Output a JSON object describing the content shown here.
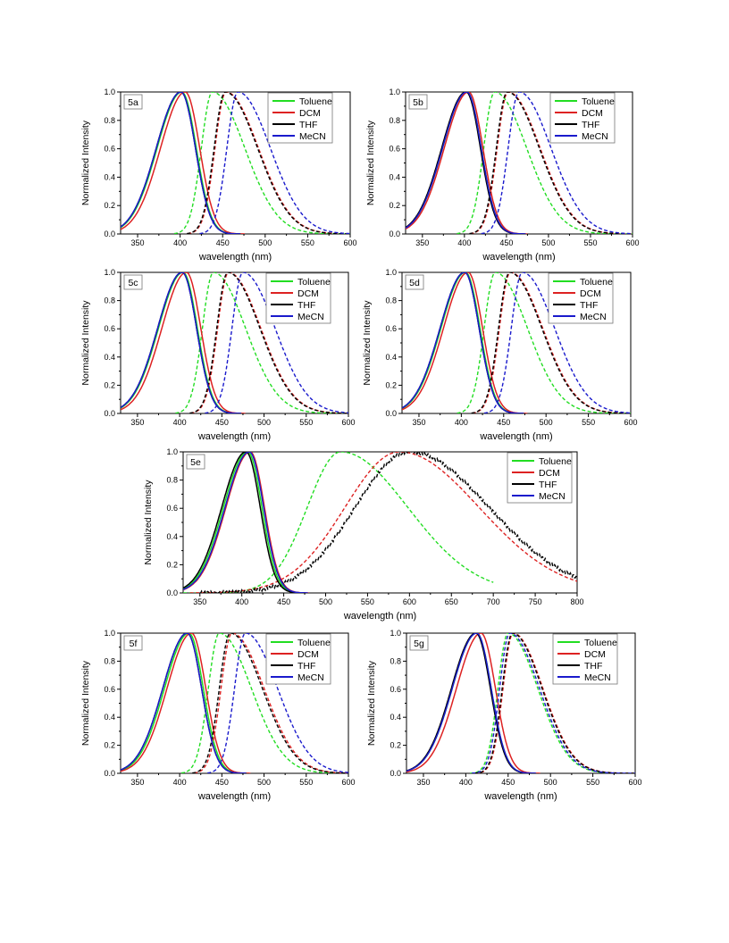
{
  "colors": {
    "Toluene": "#22dd22",
    "DCM": "#dd2222",
    "THF": "#000000",
    "MeCN": "#1a1acc"
  },
  "chart_data": [
    {
      "id": "5a",
      "type": "line",
      "panel_label": "5a",
      "xlabel": "wavelength (nm)",
      "ylabel": "Normalized Intensity",
      "xlim": [
        330,
        600
      ],
      "ylim": [
        0,
        1.0
      ],
      "xticks": [
        "350",
        "400",
        "450",
        "500",
        "550",
        "600"
      ],
      "yticks": [
        "0.0",
        "0.2",
        "0.4",
        "0.6",
        "0.8",
        "1.0"
      ],
      "legend": [
        "Toluene",
        "DCM",
        "THF",
        "MeCN"
      ],
      "absorption_peaks_nm": {
        "Toluene": 402,
        "DCM": 406,
        "THF": 401,
        "MeCN": 401
      },
      "emission_peaks_nm": {
        "Toluene": 438,
        "DCM": 454,
        "THF": 453,
        "MeCN": 468
      },
      "grid": false,
      "legend_position": "top-right"
    },
    {
      "id": "5b",
      "type": "line",
      "panel_label": "5b",
      "xlabel": "wavelength (nm)",
      "ylabel": "Normalized Intensity",
      "xlim": [
        330,
        600
      ],
      "ylim": [
        0,
        1.0
      ],
      "xticks": [
        "350",
        "400",
        "450",
        "500",
        "550",
        "600"
      ],
      "yticks": [
        "0.0",
        "0.2",
        "0.4",
        "0.6",
        "0.8",
        "1.0"
      ],
      "legend": [
        "Toluene",
        "DCM",
        "THF",
        "MeCN"
      ],
      "absorption_peaks_nm": {
        "Toluene": 403,
        "DCM": 405,
        "THF": 402,
        "MeCN": 403
      },
      "emission_peaks_nm": {
        "Toluene": 436,
        "DCM": 452,
        "THF": 451,
        "MeCN": 465
      },
      "grid": false,
      "legend_position": "top-right"
    },
    {
      "id": "5c",
      "type": "line",
      "panel_label": "5c",
      "xlabel": "wavelength (nm)",
      "ylabel": "Normalized Intensity",
      "xlim": [
        330,
        600
      ],
      "ylim": [
        0,
        1.0
      ],
      "xticks": [
        "350",
        "400",
        "450",
        "500",
        "550",
        "600"
      ],
      "yticks": [
        "0.0",
        "0.2",
        "0.4",
        "0.6",
        "0.8",
        "1.0"
      ],
      "legend": [
        "Toluene",
        "DCM",
        "THF",
        "MeCN"
      ],
      "absorption_peaks_nm": {
        "Toluene": 404,
        "DCM": 408,
        "THF": 403,
        "MeCN": 403
      },
      "emission_peaks_nm": {
        "Toluene": 440,
        "DCM": 458,
        "THF": 457,
        "MeCN": 475
      },
      "grid": false,
      "legend_position": "top-right"
    },
    {
      "id": "5d",
      "type": "line",
      "panel_label": "5d",
      "xlabel": "wavelength (nm)",
      "ylabel": "Normalized Intensity",
      "xlim": [
        330,
        600
      ],
      "ylim": [
        0,
        1.0
      ],
      "xticks": [
        "350",
        "400",
        "450",
        "500",
        "550",
        "600"
      ],
      "yticks": [
        "0.0",
        "0.2",
        "0.4",
        "0.6",
        "0.8",
        "1.0"
      ],
      "legend": [
        "Toluene",
        "DCM",
        "THF",
        "MeCN"
      ],
      "absorption_peaks_nm": {
        "Toluene": 405,
        "DCM": 408,
        "THF": 404,
        "MeCN": 404
      },
      "emission_peaks_nm": {
        "Toluene": 440,
        "DCM": 458,
        "THF": 457,
        "MeCN": 472
      },
      "grid": false,
      "legend_position": "top-right"
    },
    {
      "id": "5e",
      "type": "line",
      "panel_label": "5e",
      "xlabel": "wavelength (nm)",
      "ylabel": "Normalized Intensity",
      "xlim": [
        330,
        800
      ],
      "ylim": [
        0,
        1.0
      ],
      "xticks": [
        "350",
        "400",
        "450",
        "500",
        "550",
        "600",
        "650",
        "700",
        "750",
        "800"
      ],
      "yticks": [
        "0.0",
        "0.2",
        "0.4",
        "0.6",
        "0.8",
        "1.0"
      ],
      "legend": [
        "Toluene",
        "DCM",
        "THF",
        "MeCN"
      ],
      "absorption_peaks_nm": {
        "Toluene": 407,
        "DCM": 410,
        "THF": 405,
        "MeCN": 409
      },
      "emission_peaks_nm": {
        "Toluene": 518,
        "DCM": 588,
        "THF": 600
      },
      "grid": false,
      "legend_position": "top-right"
    },
    {
      "id": "5f",
      "type": "line",
      "panel_label": "5f",
      "xlabel": "wavelength (nm)",
      "ylabel": "Normalized Intensity",
      "xlim": [
        330,
        600
      ],
      "ylim": [
        0,
        1.0
      ],
      "xticks": [
        "350",
        "400",
        "450",
        "500",
        "550",
        "600"
      ],
      "yticks": [
        "0.0",
        "0.2",
        "0.4",
        "0.6",
        "0.8",
        "1.0"
      ],
      "legend": [
        "Toluene",
        "DCM",
        "THF",
        "MeCN"
      ],
      "absorption_peaks_nm": {
        "Toluene": 411,
        "DCM": 414,
        "THF": 409,
        "MeCN": 409
      },
      "emission_peaks_nm": {
        "Toluene": 447,
        "DCM": 462,
        "THF": 460,
        "MeCN": 478
      },
      "grid": false,
      "legend_position": "top-right"
    },
    {
      "id": "5g",
      "type": "line",
      "panel_label": "5g",
      "xlabel": "wavelength (nm)",
      "ylabel": "Normalized Intensity",
      "xlim": [
        330,
        600
      ],
      "ylim": [
        0,
        1.0
      ],
      "xticks": [
        "350",
        "400",
        "450",
        "500",
        "550",
        "600"
      ],
      "yticks": [
        "0.0",
        "0.2",
        "0.4",
        "0.6",
        "0.8",
        "1.0"
      ],
      "legend": [
        "Toluene",
        "DCM",
        "THF",
        "MeCN"
      ],
      "absorption_peaks_nm": {
        "Toluene": 413,
        "DCM": 418,
        "THF": 412,
        "MeCN": 413
      },
      "emission_peaks_nm": {
        "Toluene": 450,
        "DCM": 456,
        "THF": 455,
        "MeCN": 452
      },
      "grid": false,
      "legend_position": "top-right"
    }
  ]
}
